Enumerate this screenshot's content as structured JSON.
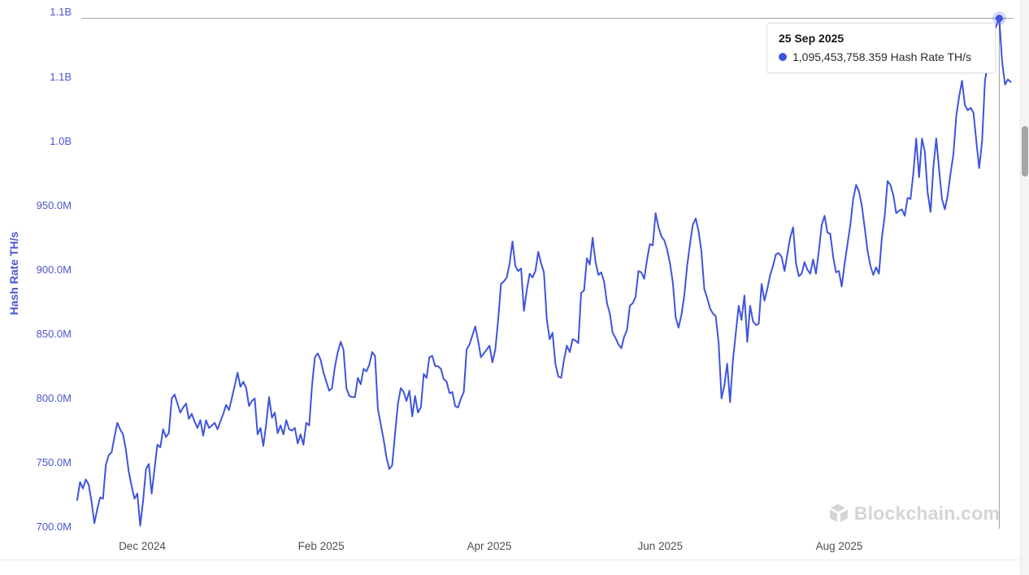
{
  "chart": {
    "y_axis_title": "Hash Rate TH/s",
    "watermark_text": "Blockchain.com"
  },
  "tooltip": {
    "date": "25 Sep 2025",
    "value_text": "1,095,453,758.359 Hash Rate TH/s"
  },
  "icons": {
    "watermark_logo": "blockchain-cube",
    "tooltip_series_marker": "filled-circle"
  },
  "colors": {
    "line": "#3f54dc",
    "axis_blue": "#4a57d0",
    "x_label_gray": "#4f4f4f",
    "crosshair": "#9a9a9a",
    "marker_halo": "rgba(63,84,220,0.22)",
    "watermark_gray": "#d5d5d5",
    "tooltip_border": "#e3e3e3"
  },
  "chart_data": {
    "type": "line",
    "title": "",
    "xlabel": "",
    "ylabel": "Hash Rate TH/s",
    "unit": "TH/s",
    "value_scale": "millions of TH/s",
    "x_start_date": "2024-11-08",
    "x_end_date": "2025-09-30",
    "ylim_millions": [
      690,
      1110
    ],
    "grid": "off",
    "legend": "none",
    "y_ticks": [
      {
        "v": 1100,
        "label": "1.1B"
      },
      {
        "v": 1050,
        "label": "1.1B"
      },
      {
        "v": 1000,
        "label": "1.0B"
      },
      {
        "v": 950,
        "label": "950.0M"
      },
      {
        "v": 900,
        "label": "900.0M"
      },
      {
        "v": 850,
        "label": "850.0M"
      },
      {
        "v": 800,
        "label": "800.0M"
      },
      {
        "v": 750,
        "label": "750.0M"
      },
      {
        "v": 700,
        "label": "700.0M"
      }
    ],
    "x_ticks": [
      {
        "t": 22.7,
        "label": "Dec 2024"
      },
      {
        "t": 85.2,
        "label": "Feb 2025"
      },
      {
        "t": 143.9,
        "label": "Apr 2025"
      },
      {
        "t": 203.6,
        "label": "Jun 2025"
      },
      {
        "t": 266.1,
        "label": "Aug 2025"
      }
    ],
    "highlight_point": {
      "date": "2025-09-25",
      "t": 322,
      "v": 1095.453758359
    },
    "points_format": "[days_since_2024-11-08, hash_rate_in_millions_THs]",
    "points": [
      [
        0,
        721
      ],
      [
        1,
        735
      ],
      [
        2,
        730
      ],
      [
        3,
        737
      ],
      [
        4,
        733
      ],
      [
        5,
        720
      ],
      [
        6,
        703
      ],
      [
        7,
        714
      ],
      [
        8,
        723
      ],
      [
        9,
        722
      ],
      [
        10,
        748
      ],
      [
        11,
        756
      ],
      [
        12,
        758
      ],
      [
        13,
        770
      ],
      [
        14,
        781
      ],
      [
        15,
        776
      ],
      [
        16,
        772
      ],
      [
        17,
        760
      ],
      [
        18,
        743
      ],
      [
        19,
        732
      ],
      [
        20,
        722
      ],
      [
        21,
        726
      ],
      [
        22,
        701
      ],
      [
        23,
        720
      ],
      [
        24,
        745
      ],
      [
        25,
        749
      ],
      [
        26,
        726
      ],
      [
        27,
        745
      ],
      [
        28,
        764
      ],
      [
        29,
        762
      ],
      [
        30,
        776
      ],
      [
        31,
        770
      ],
      [
        32,
        773
      ],
      [
        33,
        800
      ],
      [
        34,
        803
      ],
      [
        35,
        796
      ],
      [
        36,
        789
      ],
      [
        37,
        793
      ],
      [
        38,
        796
      ],
      [
        39,
        784
      ],
      [
        40,
        788
      ],
      [
        41,
        782
      ],
      [
        42,
        777
      ],
      [
        43,
        783
      ],
      [
        44,
        771
      ],
      [
        45,
        783
      ],
      [
        46,
        777
      ],
      [
        47,
        779
      ],
      [
        48,
        781
      ],
      [
        49,
        776
      ],
      [
        50,
        782
      ],
      [
        51,
        788
      ],
      [
        52,
        795
      ],
      [
        53,
        791
      ],
      [
        54,
        800
      ],
      [
        55,
        810
      ],
      [
        56,
        820
      ],
      [
        57,
        809
      ],
      [
        58,
        813
      ],
      [
        59,
        808
      ],
      [
        60,
        794
      ],
      [
        61,
        798
      ],
      [
        62,
        800
      ],
      [
        63,
        772
      ],
      [
        64,
        777
      ],
      [
        65,
        763
      ],
      [
        66,
        780
      ],
      [
        67,
        801
      ],
      [
        68,
        785
      ],
      [
        69,
        789
      ],
      [
        70,
        773
      ],
      [
        71,
        779
      ],
      [
        72,
        772
      ],
      [
        73,
        783
      ],
      [
        74,
        776
      ],
      [
        75,
        775
      ],
      [
        76,
        777
      ],
      [
        77,
        765
      ],
      [
        78,
        772
      ],
      [
        79,
        764
      ],
      [
        80,
        781
      ],
      [
        81,
        779
      ],
      [
        82,
        810
      ],
      [
        83,
        832
      ],
      [
        84,
        835
      ],
      [
        85,
        830
      ],
      [
        86,
        820
      ],
      [
        87,
        813
      ],
      [
        88,
        806
      ],
      [
        89,
        808
      ],
      [
        90,
        825
      ],
      [
        91,
        836
      ],
      [
        92,
        844
      ],
      [
        93,
        838
      ],
      [
        94,
        808
      ],
      [
        95,
        802
      ],
      [
        96,
        801
      ],
      [
        97,
        801
      ],
      [
        98,
        816
      ],
      [
        99,
        811
      ],
      [
        100,
        823
      ],
      [
        101,
        821
      ],
      [
        102,
        826
      ],
      [
        103,
        836
      ],
      [
        104,
        833
      ],
      [
        105,
        792
      ],
      [
        106,
        780
      ],
      [
        107,
        768
      ],
      [
        108,
        754
      ],
      [
        109,
        745
      ],
      [
        110,
        748
      ],
      [
        111,
        773
      ],
      [
        112,
        796
      ],
      [
        113,
        808
      ],
      [
        114,
        805
      ],
      [
        115,
        798
      ],
      [
        116,
        806
      ],
      [
        117,
        786
      ],
      [
        118,
        802
      ],
      [
        119,
        789
      ],
      [
        120,
        793
      ],
      [
        121,
        819
      ],
      [
        122,
        816
      ],
      [
        123,
        832
      ],
      [
        124,
        833
      ],
      [
        125,
        825
      ],
      [
        126,
        825
      ],
      [
        127,
        823
      ],
      [
        128,
        815
      ],
      [
        129,
        813
      ],
      [
        130,
        804
      ],
      [
        131,
        805
      ],
      [
        132,
        794
      ],
      [
        133,
        793
      ],
      [
        134,
        800
      ],
      [
        135,
        805
      ],
      [
        136,
        838
      ],
      [
        137,
        842
      ],
      [
        138,
        849
      ],
      [
        139,
        856
      ],
      [
        140,
        845
      ],
      [
        141,
        832
      ],
      [
        142,
        835
      ],
      [
        143,
        838
      ],
      [
        144,
        841
      ],
      [
        145,
        828
      ],
      [
        146,
        838
      ],
      [
        147,
        861
      ],
      [
        148,
        889
      ],
      [
        149,
        891
      ],
      [
        150,
        894
      ],
      [
        151,
        905
      ],
      [
        152,
        922
      ],
      [
        153,
        903
      ],
      [
        154,
        899
      ],
      [
        155,
        901
      ],
      [
        156,
        868
      ],
      [
        157,
        884
      ],
      [
        158,
        897
      ],
      [
        159,
        894
      ],
      [
        160,
        899
      ],
      [
        161,
        914
      ],
      [
        162,
        905
      ],
      [
        163,
        898
      ],
      [
        164,
        861
      ],
      [
        165,
        846
      ],
      [
        166,
        851
      ],
      [
        167,
        827
      ],
      [
        168,
        817
      ],
      [
        169,
        816
      ],
      [
        170,
        830
      ],
      [
        171,
        841
      ],
      [
        172,
        836
      ],
      [
        173,
        846
      ],
      [
        174,
        845
      ],
      [
        175,
        843
      ],
      [
        176,
        882
      ],
      [
        177,
        884
      ],
      [
        178,
        909
      ],
      [
        179,
        904
      ],
      [
        180,
        925
      ],
      [
        181,
        906
      ],
      [
        182,
        896
      ],
      [
        183,
        898
      ],
      [
        184,
        891
      ],
      [
        185,
        874
      ],
      [
        186,
        866
      ],
      [
        187,
        851
      ],
      [
        188,
        847
      ],
      [
        189,
        842
      ],
      [
        190,
        839
      ],
      [
        191,
        848
      ],
      [
        192,
        853
      ],
      [
        193,
        872
      ],
      [
        194,
        874
      ],
      [
        195,
        879
      ],
      [
        196,
        899
      ],
      [
        197,
        898
      ],
      [
        198,
        893
      ],
      [
        199,
        908
      ],
      [
        200,
        920
      ],
      [
        201,
        919
      ],
      [
        202,
        944
      ],
      [
        203,
        933
      ],
      [
        204,
        926
      ],
      [
        205,
        923
      ],
      [
        206,
        916
      ],
      [
        207,
        905
      ],
      [
        208,
        890
      ],
      [
        209,
        863
      ],
      [
        210,
        855
      ],
      [
        211,
        865
      ],
      [
        212,
        880
      ],
      [
        213,
        903
      ],
      [
        214,
        920
      ],
      [
        215,
        935
      ],
      [
        216,
        940
      ],
      [
        217,
        930
      ],
      [
        218,
        914
      ],
      [
        219,
        885
      ],
      [
        220,
        878
      ],
      [
        221,
        870
      ],
      [
        222,
        866
      ],
      [
        223,
        864
      ],
      [
        224,
        843
      ],
      [
        225,
        800
      ],
      [
        226,
        810
      ],
      [
        227,
        827
      ],
      [
        228,
        797
      ],
      [
        229,
        830
      ],
      [
        230,
        851
      ],
      [
        231,
        872
      ],
      [
        232,
        861
      ],
      [
        233,
        880
      ],
      [
        234,
        844
      ],
      [
        235,
        872
      ],
      [
        236,
        860
      ],
      [
        237,
        857
      ],
      [
        238,
        858
      ],
      [
        239,
        889
      ],
      [
        240,
        876
      ],
      [
        241,
        885
      ],
      [
        242,
        896
      ],
      [
        243,
        903
      ],
      [
        244,
        912
      ],
      [
        245,
        913
      ],
      [
        246,
        910
      ],
      [
        247,
        899
      ],
      [
        248,
        912
      ],
      [
        249,
        925
      ],
      [
        250,
        933
      ],
      [
        251,
        905
      ],
      [
        252,
        895
      ],
      [
        253,
        897
      ],
      [
        254,
        906
      ],
      [
        255,
        900
      ],
      [
        256,
        897
      ],
      [
        257,
        908
      ],
      [
        258,
        897
      ],
      [
        259,
        915
      ],
      [
        260,
        935
      ],
      [
        261,
        942
      ],
      [
        262,
        929
      ],
      [
        263,
        928
      ],
      [
        264,
        910
      ],
      [
        265,
        898
      ],
      [
        266,
        899
      ],
      [
        267,
        887
      ],
      [
        268,
        905
      ],
      [
        269,
        920
      ],
      [
        270,
        935
      ],
      [
        271,
        955
      ],
      [
        272,
        966
      ],
      [
        273,
        961
      ],
      [
        274,
        950
      ],
      [
        275,
        933
      ],
      [
        276,
        915
      ],
      [
        277,
        903
      ],
      [
        278,
        896
      ],
      [
        279,
        902
      ],
      [
        280,
        897
      ],
      [
        281,
        925
      ],
      [
        282,
        942
      ],
      [
        283,
        969
      ],
      [
        284,
        966
      ],
      [
        285,
        958
      ],
      [
        286,
        944
      ],
      [
        287,
        946
      ],
      [
        288,
        947
      ],
      [
        289,
        942
      ],
      [
        290,
        956
      ],
      [
        291,
        955
      ],
      [
        292,
        975
      ],
      [
        293,
        1002
      ],
      [
        294,
        972
      ],
      [
        295,
        1002
      ],
      [
        296,
        992
      ],
      [
        297,
        960
      ],
      [
        298,
        945
      ],
      [
        299,
        980
      ],
      [
        300,
        1002
      ],
      [
        301,
        978
      ],
      [
        302,
        955
      ],
      [
        303,
        947
      ],
      [
        304,
        958
      ],
      [
        305,
        975
      ],
      [
        306,
        990
      ],
      [
        307,
        1020
      ],
      [
        308,
        1035
      ],
      [
        309,
        1047
      ],
      [
        310,
        1028
      ],
      [
        311,
        1024
      ],
      [
        312,
        1026
      ],
      [
        313,
        1022
      ],
      [
        314,
        1000
      ],
      [
        315,
        979
      ],
      [
        316,
        1000
      ],
      [
        317,
        1047
      ],
      [
        318,
        1060
      ],
      [
        319,
        1075
      ],
      [
        320,
        1085
      ],
      [
        321,
        1090
      ],
      [
        322,
        1095.45
      ],
      [
        323,
        1062
      ],
      [
        324,
        1044
      ],
      [
        325,
        1048
      ],
      [
        326,
        1046
      ]
    ]
  }
}
